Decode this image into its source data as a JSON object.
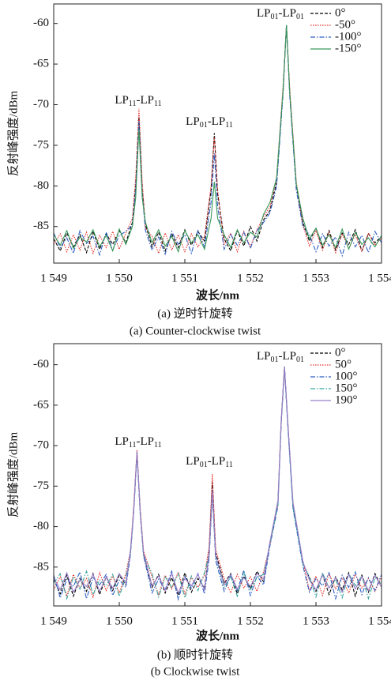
{
  "chart_data": [
    {
      "type": "line",
      "x": [
        1549.0,
        1549.1,
        1549.2,
        1549.3,
        1549.4,
        1549.5,
        1549.6,
        1549.7,
        1549.8,
        1549.9,
        1550.0,
        1550.1,
        1550.2,
        1550.25,
        1550.3,
        1550.35,
        1550.4,
        1550.5,
        1550.6,
        1550.7,
        1550.8,
        1550.9,
        1551.0,
        1551.1,
        1551.2,
        1551.3,
        1551.4,
        1551.45,
        1551.5,
        1551.6,
        1551.7,
        1551.8,
        1551.9,
        1552.0,
        1552.1,
        1552.2,
        1552.3,
        1552.4,
        1552.5,
        1552.55,
        1552.6,
        1552.7,
        1552.8,
        1552.9,
        1553.0,
        1553.1,
        1553.2,
        1553.3,
        1553.4,
        1553.5,
        1553.6,
        1553.7,
        1553.8,
        1553.9,
        1554.0
      ],
      "series": [
        {
          "name": "0°",
          "color": "#000000",
          "dash": "dashed",
          "values": [
            -86.5,
            -88.0,
            -85.8,
            -87.5,
            -86.0,
            -88.2,
            -85.6,
            -87.8,
            -85.9,
            -87.2,
            -85.5,
            -87.0,
            -84.5,
            -80.0,
            -71.5,
            -80.5,
            -84.8,
            -87.5,
            -85.7,
            -88.0,
            -85.9,
            -87.6,
            -85.4,
            -87.3,
            -85.6,
            -86.8,
            -80.5,
            -73.5,
            -81.0,
            -86.5,
            -88.0,
            -85.5,
            -87.4,
            -85.0,
            -86.8,
            -84.2,
            -83.0,
            -79.5,
            -68.0,
            -60.2,
            -68.5,
            -80.0,
            -84.5,
            -86.8,
            -85.2,
            -87.6,
            -85.5,
            -87.9,
            -85.8,
            -87.2,
            -85.4,
            -88.0,
            -85.9,
            -87.0,
            -86.2
          ]
        },
        {
          "name": "-50°",
          "color": "#e8302a",
          "dash": "dotted",
          "values": [
            -87.2,
            -85.9,
            -88.1,
            -86.0,
            -87.9,
            -85.7,
            -88.3,
            -86.1,
            -87.6,
            -85.6,
            -87.8,
            -85.8,
            -84.0,
            -79.0,
            -70.5,
            -79.5,
            -85.2,
            -86.2,
            -88.3,
            -85.8,
            -87.9,
            -86.0,
            -88.1,
            -85.9,
            -87.5,
            -86.2,
            -80.0,
            -74.0,
            -80.5,
            -87.2,
            -85.8,
            -88.1,
            -85.6,
            -87.5,
            -85.4,
            -83.8,
            -82.5,
            -79.0,
            -67.5,
            -60.3,
            -68.0,
            -79.5,
            -84.8,
            -87.4,
            -85.5,
            -87.9,
            -85.7,
            -88.2,
            -85.9,
            -87.7,
            -86.0,
            -88.1,
            -85.8,
            -87.3,
            -86.4
          ]
        },
        {
          "name": "-100°",
          "color": "#2f5fc4",
          "dash": "dashdot",
          "values": [
            -85.8,
            -87.6,
            -86.4,
            -88.3,
            -85.5,
            -87.1,
            -86.2,
            -88.5,
            -85.7,
            -87.9,
            -86.1,
            -85.6,
            -84.8,
            -80.5,
            -72.0,
            -81.0,
            -85.5,
            -87.9,
            -86.3,
            -88.4,
            -85.6,
            -87.2,
            -86.0,
            -88.3,
            -85.5,
            -87.5,
            -82.0,
            -76.0,
            -82.5,
            -87.8,
            -86.0,
            -87.3,
            -85.7,
            -87.7,
            -85.5,
            -84.5,
            -83.3,
            -80.0,
            -68.5,
            -60.2,
            -69.0,
            -80.5,
            -85.0,
            -86.0,
            -88.1,
            -85.9,
            -87.4,
            -86.3,
            -88.6,
            -85.7,
            -87.5,
            -86.1,
            -88.2,
            -85.6,
            -87.0
          ]
        },
        {
          "name": "-150°",
          "color": "#3a9a5c",
          "dash": "solid",
          "values": [
            -86.0,
            -87.3,
            -85.5,
            -87.7,
            -86.3,
            -86.9,
            -85.4,
            -87.5,
            -86.1,
            -88.0,
            -85.3,
            -87.2,
            -85.0,
            -81.5,
            -73.0,
            -81.5,
            -84.5,
            -87.0,
            -85.4,
            -87.4,
            -86.2,
            -88.1,
            -85.5,
            -87.0,
            -86.0,
            -87.8,
            -84.0,
            -79.5,
            -84.0,
            -86.0,
            -87.6,
            -85.4,
            -87.0,
            -85.7,
            -86.3,
            -83.5,
            -82.0,
            -79.0,
            -68.0,
            -60.2,
            -68.5,
            -79.8,
            -84.0,
            -86.5,
            -85.2,
            -87.3,
            -86.0,
            -87.6,
            -85.3,
            -87.8,
            -85.7,
            -87.2,
            -86.4,
            -87.5,
            -86.1
          ]
        }
      ],
      "xlim": [
        1549,
        1554
      ],
      "xticks": [
        {
          "value": 1549,
          "label": "1 549"
        },
        {
          "value": 1550,
          "label": "1 550"
        },
        {
          "value": 1551,
          "label": "1 551"
        },
        {
          "value": 1552,
          "label": "1 552"
        },
        {
          "value": 1553,
          "label": "1 553"
        },
        {
          "value": 1554,
          "label": "1 554"
        }
      ],
      "ylim": [
        -89.5,
        -57.6
      ],
      "yticks": [
        -85,
        -80,
        -75,
        -70,
        -65,
        -60
      ],
      "xlabel": "波长/nm",
      "ylabel": "反射峰强度/dBm",
      "legend": "upper right",
      "annotations": [
        {
          "parts": [
            "LP",
            "01",
            "-LP",
            "01"
          ]
        },
        {
          "parts": [
            "LP",
            "11",
            "-LP",
            "11"
          ]
        },
        {
          "parts": [
            "LP",
            "01",
            "-LP",
            "11"
          ]
        }
      ],
      "caption": "(a) 逆时针旋转",
      "subcaption": "(a) Counter-clockwise twist"
    },
    {
      "type": "line",
      "x": [
        1549.0,
        1549.1,
        1549.2,
        1549.3,
        1549.4,
        1549.5,
        1549.6,
        1549.7,
        1549.8,
        1549.9,
        1550.0,
        1550.1,
        1550.17,
        1550.22,
        1550.27,
        1550.32,
        1550.37,
        1550.5,
        1550.6,
        1550.7,
        1550.8,
        1550.9,
        1551.0,
        1551.1,
        1551.2,
        1551.3,
        1551.37,
        1551.42,
        1551.47,
        1551.6,
        1551.7,
        1551.8,
        1551.9,
        1552.0,
        1552.1,
        1552.2,
        1552.3,
        1552.42,
        1552.47,
        1552.52,
        1552.57,
        1552.65,
        1552.8,
        1552.9,
        1553.0,
        1553.1,
        1553.2,
        1553.3,
        1553.4,
        1553.5,
        1553.6,
        1553.7,
        1553.8,
        1553.9,
        1554.0
      ],
      "series": [
        {
          "name": "0°",
          "color": "#000000",
          "dash": "dashed",
          "values": [
            -86.5,
            -88.3,
            -86.0,
            -88.6,
            -86.4,
            -88.0,
            -85.8,
            -88.4,
            -86.2,
            -87.9,
            -86.0,
            -87.2,
            -83.2,
            -78.0,
            -70.8,
            -78.2,
            -83.4,
            -87.5,
            -85.9,
            -88.2,
            -86.3,
            -88.5,
            -85.7,
            -88.1,
            -86.4,
            -87.6,
            -83.0,
            -74.5,
            -83.2,
            -87.0,
            -85.8,
            -88.3,
            -86.1,
            -87.7,
            -85.5,
            -86.8,
            -82.0,
            -77.0,
            -67.0,
            -60.3,
            -67.2,
            -77.3,
            -84.5,
            -86.3,
            -88.0,
            -85.9,
            -88.4,
            -86.2,
            -87.8,
            -85.7,
            -88.6,
            -86.0,
            -88.1,
            -85.8,
            -87.4
          ]
        },
        {
          "name": "50°",
          "color": "#e8302a",
          "dash": "dotted",
          "values": [
            -87.8,
            -86.2,
            -88.5,
            -85.9,
            -87.6,
            -86.4,
            -88.7,
            -85.7,
            -87.9,
            -86.1,
            -88.2,
            -85.8,
            -83.0,
            -77.5,
            -70.5,
            -77.8,
            -83.0,
            -86.2,
            -88.4,
            -86.0,
            -87.7,
            -85.6,
            -88.3,
            -86.3,
            -87.5,
            -86.0,
            -82.5,
            -73.5,
            -82.8,
            -86.4,
            -88.2,
            -85.9,
            -87.6,
            -86.2,
            -88.0,
            -85.6,
            -82.2,
            -77.2,
            -66.8,
            -60.4,
            -67.0,
            -77.5,
            -84.2,
            -87.9,
            -86.1,
            -88.5,
            -85.8,
            -87.7,
            -86.3,
            -88.2,
            -85.9,
            -87.6,
            -86.4,
            -88.0,
            -86.2
          ]
        },
        {
          "name": "100°",
          "color": "#2f5fc4",
          "dash": "dashdot",
          "values": [
            -86.0,
            -88.8,
            -86.5,
            -87.4,
            -85.6,
            -88.9,
            -86.3,
            -87.2,
            -85.9,
            -88.5,
            -86.6,
            -87.5,
            -83.5,
            -78.3,
            -71.0,
            -78.5,
            -83.6,
            -88.2,
            -86.5,
            -87.8,
            -85.5,
            -89.0,
            -86.2,
            -87.6,
            -85.8,
            -88.3,
            -84.0,
            -76.0,
            -84.2,
            -88.0,
            -86.0,
            -87.9,
            -85.4,
            -88.5,
            -86.1,
            -87.2,
            -82.3,
            -77.5,
            -67.3,
            -60.4,
            -67.5,
            -77.8,
            -84.8,
            -88.1,
            -86.4,
            -87.3,
            -85.7,
            -88.9,
            -86.0,
            -87.5,
            -85.6,
            -88.4,
            -86.3,
            -87.9,
            -85.9
          ]
        },
        {
          "name": "150°",
          "color": "#3aa6a0",
          "dash": "dashdot",
          "values": [
            -87.0,
            -85.8,
            -88.9,
            -86.2,
            -87.7,
            -85.5,
            -88.4,
            -86.6,
            -87.3,
            -85.9,
            -88.6,
            -86.2,
            -83.3,
            -78.1,
            -70.9,
            -78.4,
            -83.5,
            -85.8,
            -88.7,
            -86.2,
            -87.5,
            -85.8,
            -88.8,
            -86.1,
            -87.9,
            -85.7,
            -83.5,
            -75.8,
            -83.7,
            -87.5,
            -86.2,
            -88.6,
            -85.7,
            -87.8,
            -86.3,
            -85.9,
            -82.1,
            -77.3,
            -67.1,
            -60.3,
            -67.3,
            -77.6,
            -84.6,
            -86.2,
            -88.7,
            -85.7,
            -87.6,
            -86.5,
            -88.8,
            -85.8,
            -87.3,
            -86.1,
            -88.9,
            -86.3,
            -87.1
          ]
        },
        {
          "name": "190°",
          "color": "#9a7ec8",
          "dash": "solid",
          "values": [
            -86.3,
            -87.8,
            -85.7,
            -88.1,
            -86.6,
            -87.4,
            -85.9,
            -88.0,
            -86.2,
            -87.6,
            -85.8,
            -87.0,
            -83.0,
            -78.0,
            -70.7,
            -78.1,
            -83.2,
            -87.3,
            -86.1,
            -87.9,
            -85.8,
            -88.2,
            -86.4,
            -87.3,
            -85.9,
            -87.8,
            -83.4,
            -75.5,
            -83.6,
            -87.2,
            -85.9,
            -87.7,
            -86.3,
            -87.4,
            -85.8,
            -86.5,
            -81.8,
            -76.8,
            -66.9,
            -60.2,
            -67.0,
            -77.0,
            -84.3,
            -86.6,
            -87.8,
            -86.0,
            -87.6,
            -86.3,
            -88.1,
            -85.9,
            -87.7,
            -86.2,
            -87.9,
            -86.0,
            -87.5
          ]
        }
      ],
      "xlim": [
        1549,
        1554
      ],
      "xticks": [
        {
          "value": 1549,
          "label": "1 549"
        },
        {
          "value": 1550,
          "label": "1 550"
        },
        {
          "value": 1551,
          "label": "1 551"
        },
        {
          "value": 1552,
          "label": "1 552"
        },
        {
          "value": 1553,
          "label": "1 553"
        },
        {
          "value": 1554,
          "label": "1 554"
        }
      ],
      "ylim": [
        -89.8,
        -57.4
      ],
      "yticks": [
        -85,
        -80,
        -75,
        -70,
        -65,
        -60
      ],
      "xlabel": "波长/nm",
      "ylabel": "反射峰强度/dBm",
      "legend": "upper right",
      "annotations": [
        {
          "parts": [
            "LP",
            "01",
            "-LP",
            "01"
          ]
        },
        {
          "parts": [
            "LP",
            "11",
            "-LP",
            "11"
          ]
        },
        {
          "parts": [
            "LP",
            "01",
            "-LP",
            "11"
          ]
        }
      ],
      "caption": "(b) 顺时针旋转",
      "subcaption": "(b Clockwise twist"
    }
  ]
}
